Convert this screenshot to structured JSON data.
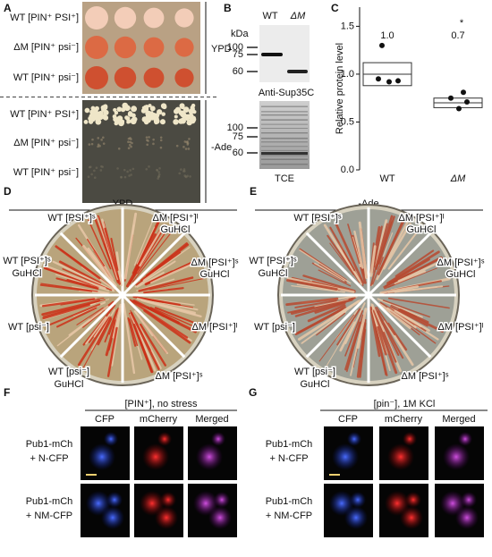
{
  "panel_a": {
    "letter": "A",
    "rows_ypd": [
      "WT [PIN⁺ PSI⁺]",
      "ΔM [PIN⁺ psi⁻]",
      "WT [PIN⁺ psi⁻]"
    ],
    "rows_ade": [
      "WT [PIN⁺ PSI⁺]",
      "ΔM [PIN⁺ psi⁻]",
      "WT [PIN⁺ psi⁻]"
    ],
    "conditions": [
      "YPD",
      "-Ade"
    ]
  },
  "panel_b": {
    "letter": "B",
    "unit": "kDa",
    "lanes": [
      "WT",
      "ΔM"
    ],
    "markers_top": [
      100,
      75,
      60
    ],
    "antibody": "Anti-Sup35C",
    "markers_bottom": [
      100,
      75,
      60
    ],
    "stain": "TCE"
  },
  "panel_c": {
    "letter": "C",
    "chart_data": {
      "type": "dotplot",
      "ylabel": "Relative protein level",
      "categories": [
        "WT",
        "ΔM"
      ],
      "values": [
        [
          1.3,
          0.95,
          0.92,
          0.93
        ],
        [
          0.81,
          0.75,
          0.64,
          0.71
        ]
      ],
      "boxes": [
        [
          0.88,
          1.12
        ],
        [
          0.65,
          0.75
        ]
      ],
      "means": [
        1.0,
        0.7
      ],
      "mean_labels": [
        "1.0",
        "0.7"
      ],
      "annotation": "*",
      "ylim": [
        0,
        1.7
      ],
      "yticks": [
        {
          "value": 0,
          "label": "0.0"
        },
        {
          "value": 0.5,
          "label": "0.5"
        },
        {
          "value": 1,
          "label": "1.0"
        },
        {
          "value": 1.5,
          "label": "1.5"
        }
      ]
    }
  },
  "panel_d": {
    "letter": "D",
    "title": "YPD",
    "sectors": [
      [
        "WT [PSI⁺]ˢ"
      ],
      [
        "ΔM [PSI⁺]ᴵ",
        "GuHCl"
      ],
      [
        "WT [PSI⁺]ˢ",
        "GuHCl"
      ],
      [
        "ΔM [PSI⁺]ˢ",
        "GuHCl"
      ],
      [
        "WT [psi⁻]"
      ],
      [
        "ΔM [PSI⁺]ᴵ"
      ],
      [
        "WT [psi⁻]",
        "GuHCl"
      ],
      [
        "ΔM [PSI⁺]ˢ"
      ]
    ]
  },
  "panel_e": {
    "letter": "E",
    "title": "-Ade",
    "sectors": [
      [
        "WT [PSI⁺]ˢ"
      ],
      [
        "ΔM [PSI⁺]ᴵ",
        "GuHCl"
      ],
      [
        "WT [PSI⁺]ˢ",
        "GuHCl"
      ],
      [
        "ΔM [PSI⁺]ˢ",
        "GuHCl"
      ],
      [
        "WT [psi⁻]"
      ],
      [
        "ΔM [PSI⁺]ᴵ"
      ],
      [
        "WT [psi⁻]",
        "GuHCl"
      ],
      [
        "ΔM [PSI⁺]ˢ"
      ]
    ]
  },
  "panel_f": {
    "letter": "F",
    "title": "[PIN⁺], no stress",
    "columns": [
      "CFP",
      "mCherry",
      "Merged"
    ],
    "rows": [
      [
        "Pub1-mCh",
        "+ N-CFP"
      ],
      [
        "Pub1-mCh",
        "+ NM-CFP"
      ]
    ]
  },
  "panel_g": {
    "letter": "G",
    "title": "[pin⁻], 1M KCl",
    "columns": [
      "CFP",
      "mCherry",
      "Merged"
    ],
    "rows": [
      [
        "Pub1-mCh",
        "+ N-CFP"
      ],
      [
        "Pub1-mCh",
        "+ NM-CFP"
      ]
    ]
  }
}
